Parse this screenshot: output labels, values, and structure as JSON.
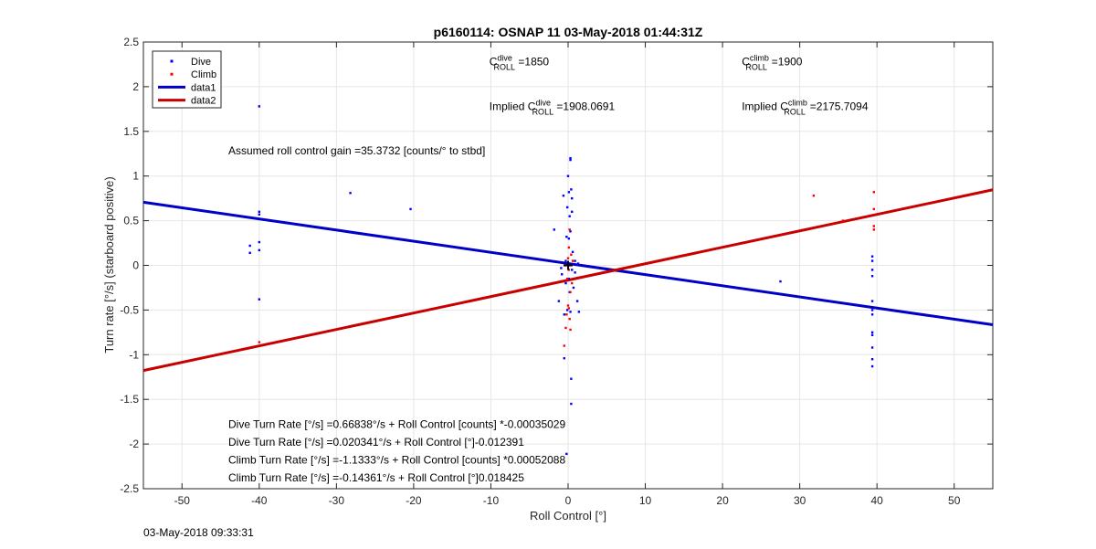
{
  "timestamp": "03-May-2018 09:33:31",
  "chart_data": {
    "type": "scatter",
    "title": "p6160114: OSNAP 11 03-May-2018 01:44:31Z",
    "xlabel": "Roll Control [°]",
    "ylabel": "Turn rate [°/s] (starboard positive)",
    "xlim": [
      -55,
      55
    ],
    "ylim": [
      -2.5,
      2.5
    ],
    "xticks": [
      -50,
      -40,
      -30,
      -20,
      -10,
      0,
      10,
      20,
      30,
      40,
      50
    ],
    "yticks": [
      2.5,
      2,
      1.5,
      1,
      0.5,
      0,
      -0.5,
      -1,
      -1.5,
      -2,
      -2.5
    ],
    "grid": true,
    "legend_position": "top-left",
    "series": [
      {
        "name": "Dive",
        "kind": "points",
        "color": "#0000ff",
        "points": [
          [
            -40.0,
            1.78
          ],
          [
            -40.0,
            0.6
          ],
          [
            -40.0,
            0.57
          ],
          [
            -40.0,
            0.26
          ],
          [
            -40.0,
            0.17
          ],
          [
            -40.0,
            -0.38
          ],
          [
            -41.2,
            0.22
          ],
          [
            -41.2,
            0.14
          ],
          [
            -28.2,
            0.81
          ],
          [
            -20.4,
            0.63
          ],
          [
            -1.8,
            0.4
          ],
          [
            -1.2,
            -0.4
          ],
          [
            -0.9,
            -0.03
          ],
          [
            -0.8,
            -0.1
          ],
          [
            -0.6,
            0.78
          ],
          [
            -0.5,
            -0.55
          ],
          [
            -0.5,
            -1.04
          ],
          [
            -0.3,
            0.05
          ],
          [
            -0.3,
            -0.2
          ],
          [
            -0.2,
            0.32
          ],
          [
            -0.2,
            -2.11
          ],
          [
            -0.1,
            0.65
          ],
          [
            -0.1,
            -0.5
          ],
          [
            0.0,
            1.0
          ],
          [
            0.0,
            0.0
          ],
          [
            0.1,
            0.82
          ],
          [
            0.1,
            0.3
          ],
          [
            0.1,
            -0.15
          ],
          [
            0.2,
            0.55
          ],
          [
            0.2,
            -0.3
          ],
          [
            0.3,
            1.2
          ],
          [
            0.3,
            1.18
          ],
          [
            0.3,
            0.38
          ],
          [
            0.3,
            -0.52
          ],
          [
            0.4,
            0.85
          ],
          [
            0.4,
            -1.27
          ],
          [
            0.5,
            0.75
          ],
          [
            0.5,
            0.6
          ],
          [
            0.5,
            -0.05
          ],
          [
            0.6,
            0.15
          ],
          [
            0.7,
            -0.25
          ],
          [
            0.9,
            0.05
          ],
          [
            0.9,
            -0.08
          ],
          [
            1.2,
            -0.4
          ],
          [
            1.3,
            0.02
          ],
          [
            1.4,
            -0.52
          ],
          [
            0.4,
            -1.55
          ],
          [
            27.5,
            -0.18
          ],
          [
            39.4,
            0.1
          ],
          [
            39.4,
            0.05
          ],
          [
            39.4,
            -0.05
          ],
          [
            39.4,
            -0.12
          ],
          [
            39.4,
            -0.4
          ],
          [
            39.4,
            -0.5
          ],
          [
            39.4,
            -0.55
          ],
          [
            39.4,
            -0.75
          ],
          [
            39.4,
            -0.78
          ],
          [
            39.4,
            -0.92
          ],
          [
            39.4,
            -1.05
          ],
          [
            39.4,
            -1.13
          ]
        ]
      },
      {
        "name": "Climb",
        "kind": "points",
        "color": "#ff0000",
        "points": [
          [
            -40.0,
            -0.86
          ],
          [
            31.8,
            0.78
          ],
          [
            35.6,
            0.5
          ],
          [
            39.6,
            0.82
          ],
          [
            39.6,
            0.63
          ],
          [
            39.6,
            0.44
          ],
          [
            39.6,
            0.4
          ],
          [
            -0.5,
            -0.9
          ],
          [
            -0.3,
            -0.7
          ],
          [
            -0.2,
            -0.55
          ],
          [
            0.0,
            -0.45
          ],
          [
            0.1,
            -0.48
          ],
          [
            0.2,
            -0.6
          ],
          [
            0.3,
            -0.72
          ],
          [
            0.2,
            0.4
          ],
          [
            0.1,
            0.2
          ],
          [
            0.0,
            0.08
          ],
          [
            -0.1,
            -0.15
          ],
          [
            0.4,
            0.12
          ],
          [
            0.5,
            -0.2
          ],
          [
            0.3,
            -0.3
          ],
          [
            0.2,
            0.0
          ],
          [
            0.6,
            0.05
          ],
          [
            -0.4,
            0.0
          ],
          [
            0.1,
            -0.05
          ]
        ]
      },
      {
        "name": "data1",
        "kind": "line",
        "color": "#0000c8",
        "points": [
          [
            -55,
            0.707
          ],
          [
            55,
            -0.665
          ]
        ]
      },
      {
        "name": "data2",
        "kind": "line",
        "color": "#c80000",
        "points": [
          [
            -55,
            -1.177
          ],
          [
            55,
            0.846
          ]
        ]
      }
    ],
    "annotations": [
      {
        "kind": "coef",
        "prefix": "C",
        "sup": "dive",
        "sub": "ROLL",
        "suffix": " =1850",
        "x": -10.2,
        "y": 2.24
      },
      {
        "kind": "coef",
        "prefix": "C",
        "sup": "climb",
        "sub": "ROLL",
        "suffix": " =1900",
        "x": 22.5,
        "y": 2.24
      },
      {
        "kind": "coef",
        "prefix": "Implied C",
        "sup": "dive",
        "sub": "ROLL",
        "suffix": " =1908.0691",
        "x": -10.2,
        "y": 1.74
      },
      {
        "kind": "coef",
        "prefix": "Implied C",
        "sup": "climb",
        "sub": "ROLL",
        "suffix": " =2175.7094",
        "x": 22.5,
        "y": 1.74
      },
      {
        "kind": "text",
        "text": "Assumed roll control gain =35.3732 [counts/° to stbd]",
        "x": -44.0,
        "y": 1.24
      },
      {
        "kind": "text",
        "text": "Dive Turn Rate [°/s] =0.66838°/s + Roll Control [counts] *-0.00035029",
        "x": -44.0,
        "y": -1.82
      },
      {
        "kind": "text",
        "text": "Dive Turn Rate [°/s] =0.020341°/s + Roll Control [°]-0.012391",
        "x": -44.0,
        "y": -2.02
      },
      {
        "kind": "text",
        "text": "Climb Turn Rate [°/s] =-1.1333°/s + Roll Control [counts] *0.00052088",
        "x": -44.0,
        "y": -2.22
      },
      {
        "kind": "text",
        "text": "Climb Turn Rate [°/s] =-0.14361°/s + Roll Control [°]0.018425",
        "x": -44.0,
        "y": -2.42
      }
    ]
  }
}
